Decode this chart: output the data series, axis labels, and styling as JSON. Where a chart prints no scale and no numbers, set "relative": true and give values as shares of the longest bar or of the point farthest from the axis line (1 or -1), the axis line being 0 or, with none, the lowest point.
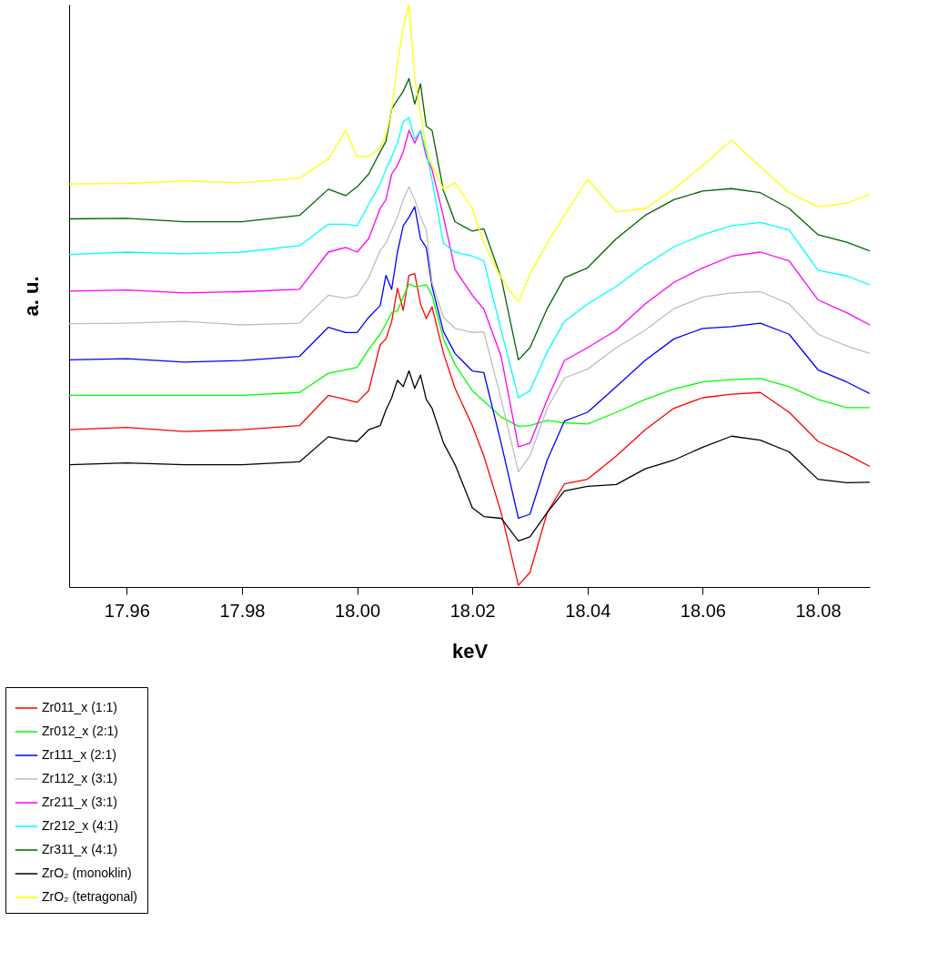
{
  "chart_data": {
    "type": "line",
    "relative": true,
    "xlabel": "keV",
    "ylabel": "a. u.",
    "xlim": [
      17.95,
      18.089
    ],
    "xticks": [
      {
        "value": 17.96,
        "label": "17.96"
      },
      {
        "value": 17.98,
        "label": "17.98"
      },
      {
        "value": 18.0,
        "label": "18.00"
      },
      {
        "value": 18.02,
        "label": "18.02"
      },
      {
        "value": 18.04,
        "label": "18.04"
      },
      {
        "value": 18.06,
        "label": "18.06"
      },
      {
        "value": 18.08,
        "label": "18.08"
      }
    ],
    "grid": false,
    "legend": "bottom left",
    "line_style": "solid",
    "marker": "none",
    "x": [
      17.95,
      17.96,
      17.97,
      17.98,
      17.99,
      17.995,
      17.998,
      18.0,
      18.002,
      18.004,
      18.005,
      18.006,
      18.007,
      18.008,
      18.009,
      18.01,
      18.011,
      18.012,
      18.013,
      18.015,
      18.017,
      18.02,
      18.022,
      18.025,
      18.028,
      18.03,
      18.033,
      18.036,
      18.04,
      18.045,
      18.05,
      18.055,
      18.06,
      18.065,
      18.07,
      18.075,
      18.08,
      18.085,
      18.089
    ],
    "series": [
      {
        "name": "Zr011_x (1:1)",
        "color": "#ff0000",
        "values": [
          0.27,
          0.274,
          0.267,
          0.27,
          0.277,
          0.329,
          0.322,
          0.317,
          0.337,
          0.416,
          0.426,
          0.456,
          0.513,
          0.475,
          0.535,
          0.538,
          0.486,
          0.461,
          0.481,
          0.401,
          0.341,
          0.277,
          0.225,
          0.128,
          0.003,
          0.025,
          0.128,
          0.177,
          0.185,
          0.225,
          0.27,
          0.307,
          0.325,
          0.331,
          0.334,
          0.3,
          0.25,
          0.228,
          0.207
        ]
      },
      {
        "name": "Zr012_x (2:1)",
        "color": "#00ff00",
        "values": [
          0.329,
          0.329,
          0.329,
          0.329,
          0.334,
          0.367,
          0.373,
          0.377,
          0.408,
          0.434,
          0.452,
          0.471,
          0.474,
          0.498,
          0.52,
          0.516,
          0.517,
          0.519,
          0.501,
          0.426,
          0.382,
          0.337,
          0.319,
          0.292,
          0.276,
          0.277,
          0.286,
          0.282,
          0.28,
          0.3,
          0.322,
          0.34,
          0.352,
          0.356,
          0.358,
          0.344,
          0.322,
          0.308,
          0.308
        ]
      },
      {
        "name": "Zr111_x (2:1)",
        "color": "#0000ff",
        "values": [
          0.39,
          0.392,
          0.386,
          0.389,
          0.396,
          0.446,
          0.437,
          0.437,
          0.463,
          0.483,
          0.535,
          0.511,
          0.575,
          0.62,
          0.635,
          0.653,
          0.598,
          0.583,
          0.516,
          0.438,
          0.401,
          0.371,
          0.368,
          0.247,
          0.118,
          0.125,
          0.218,
          0.285,
          0.3,
          0.344,
          0.389,
          0.426,
          0.444,
          0.447,
          0.453,
          0.434,
          0.373,
          0.352,
          0.332
        ]
      },
      {
        "name": "Zr112_x (3:1)",
        "color": "#bebebe",
        "values": [
          0.452,
          0.453,
          0.456,
          0.45,
          0.453,
          0.501,
          0.496,
          0.501,
          0.531,
          0.578,
          0.59,
          0.613,
          0.635,
          0.665,
          0.687,
          0.665,
          0.635,
          0.613,
          0.523,
          0.463,
          0.444,
          0.437,
          0.438,
          0.322,
          0.198,
          0.225,
          0.307,
          0.359,
          0.374,
          0.411,
          0.441,
          0.478,
          0.498,
          0.505,
          0.507,
          0.486,
          0.434,
          0.414,
          0.401
        ]
      },
      {
        "name": "Zr211_x (3:1)",
        "color": "#ff00ff",
        "values": [
          0.508,
          0.51,
          0.505,
          0.507,
          0.511,
          0.575,
          0.583,
          0.575,
          0.598,
          0.65,
          0.665,
          0.709,
          0.724,
          0.747,
          0.784,
          0.762,
          0.784,
          0.739,
          0.717,
          0.635,
          0.545,
          0.501,
          0.477,
          0.396,
          0.241,
          0.247,
          0.322,
          0.389,
          0.411,
          0.441,
          0.486,
          0.523,
          0.548,
          0.568,
          0.575,
          0.56,
          0.493,
          0.471,
          0.45
        ]
      },
      {
        "name": "Zr212_x (4:1)",
        "color": "#00ffff",
        "values": [
          0.571,
          0.575,
          0.572,
          0.575,
          0.586,
          0.623,
          0.623,
          0.62,
          0.657,
          0.692,
          0.717,
          0.739,
          0.762,
          0.799,
          0.806,
          0.769,
          0.784,
          0.747,
          0.699,
          0.59,
          0.575,
          0.568,
          0.56,
          0.441,
          0.325,
          0.337,
          0.404,
          0.456,
          0.486,
          0.516,
          0.553,
          0.584,
          0.605,
          0.62,
          0.626,
          0.613,
          0.544,
          0.534,
          0.519
        ]
      },
      {
        "name": "Zr311_x (4:1)",
        "color": "#006400",
        "values": [
          0.632,
          0.633,
          0.627,
          0.627,
          0.638,
          0.683,
          0.672,
          0.687,
          0.709,
          0.747,
          0.765,
          0.821,
          0.836,
          0.851,
          0.873,
          0.829,
          0.864,
          0.791,
          0.784,
          0.68,
          0.627,
          0.611,
          0.615,
          0.531,
          0.39,
          0.411,
          0.478,
          0.531,
          0.548,
          0.598,
          0.638,
          0.665,
          0.68,
          0.684,
          0.677,
          0.65,
          0.605,
          0.592,
          0.577
        ]
      },
      {
        "name": "ZrO₂ (monoklin)",
        "color": "#000000",
        "values": [
          0.21,
          0.213,
          0.21,
          0.21,
          0.215,
          0.258,
          0.252,
          0.25,
          0.27,
          0.277,
          0.304,
          0.325,
          0.355,
          0.344,
          0.371,
          0.341,
          0.364,
          0.322,
          0.307,
          0.247,
          0.21,
          0.136,
          0.121,
          0.118,
          0.079,
          0.086,
          0.128,
          0.165,
          0.173,
          0.176,
          0.203,
          0.218,
          0.24,
          0.259,
          0.252,
          0.232,
          0.185,
          0.179,
          0.18
        ]
      },
      {
        "name": "ZrO₂ (tetragonal)",
        "color": "#ffff00",
        "values": [
          0.692,
          0.693,
          0.697,
          0.694,
          0.702,
          0.735,
          0.784,
          0.739,
          0.739,
          0.754,
          0.776,
          0.818,
          0.899,
          0.96,
          1,
          0.873,
          0.814,
          0.754,
          0.724,
          0.683,
          0.694,
          0.65,
          0.59,
          0.531,
          0.489,
          0.538,
          0.59,
          0.638,
          0.7,
          0.644,
          0.65,
          0.683,
          0.724,
          0.767,
          0.721,
          0.677,
          0.653,
          0.659,
          0.674
        ]
      }
    ]
  }
}
